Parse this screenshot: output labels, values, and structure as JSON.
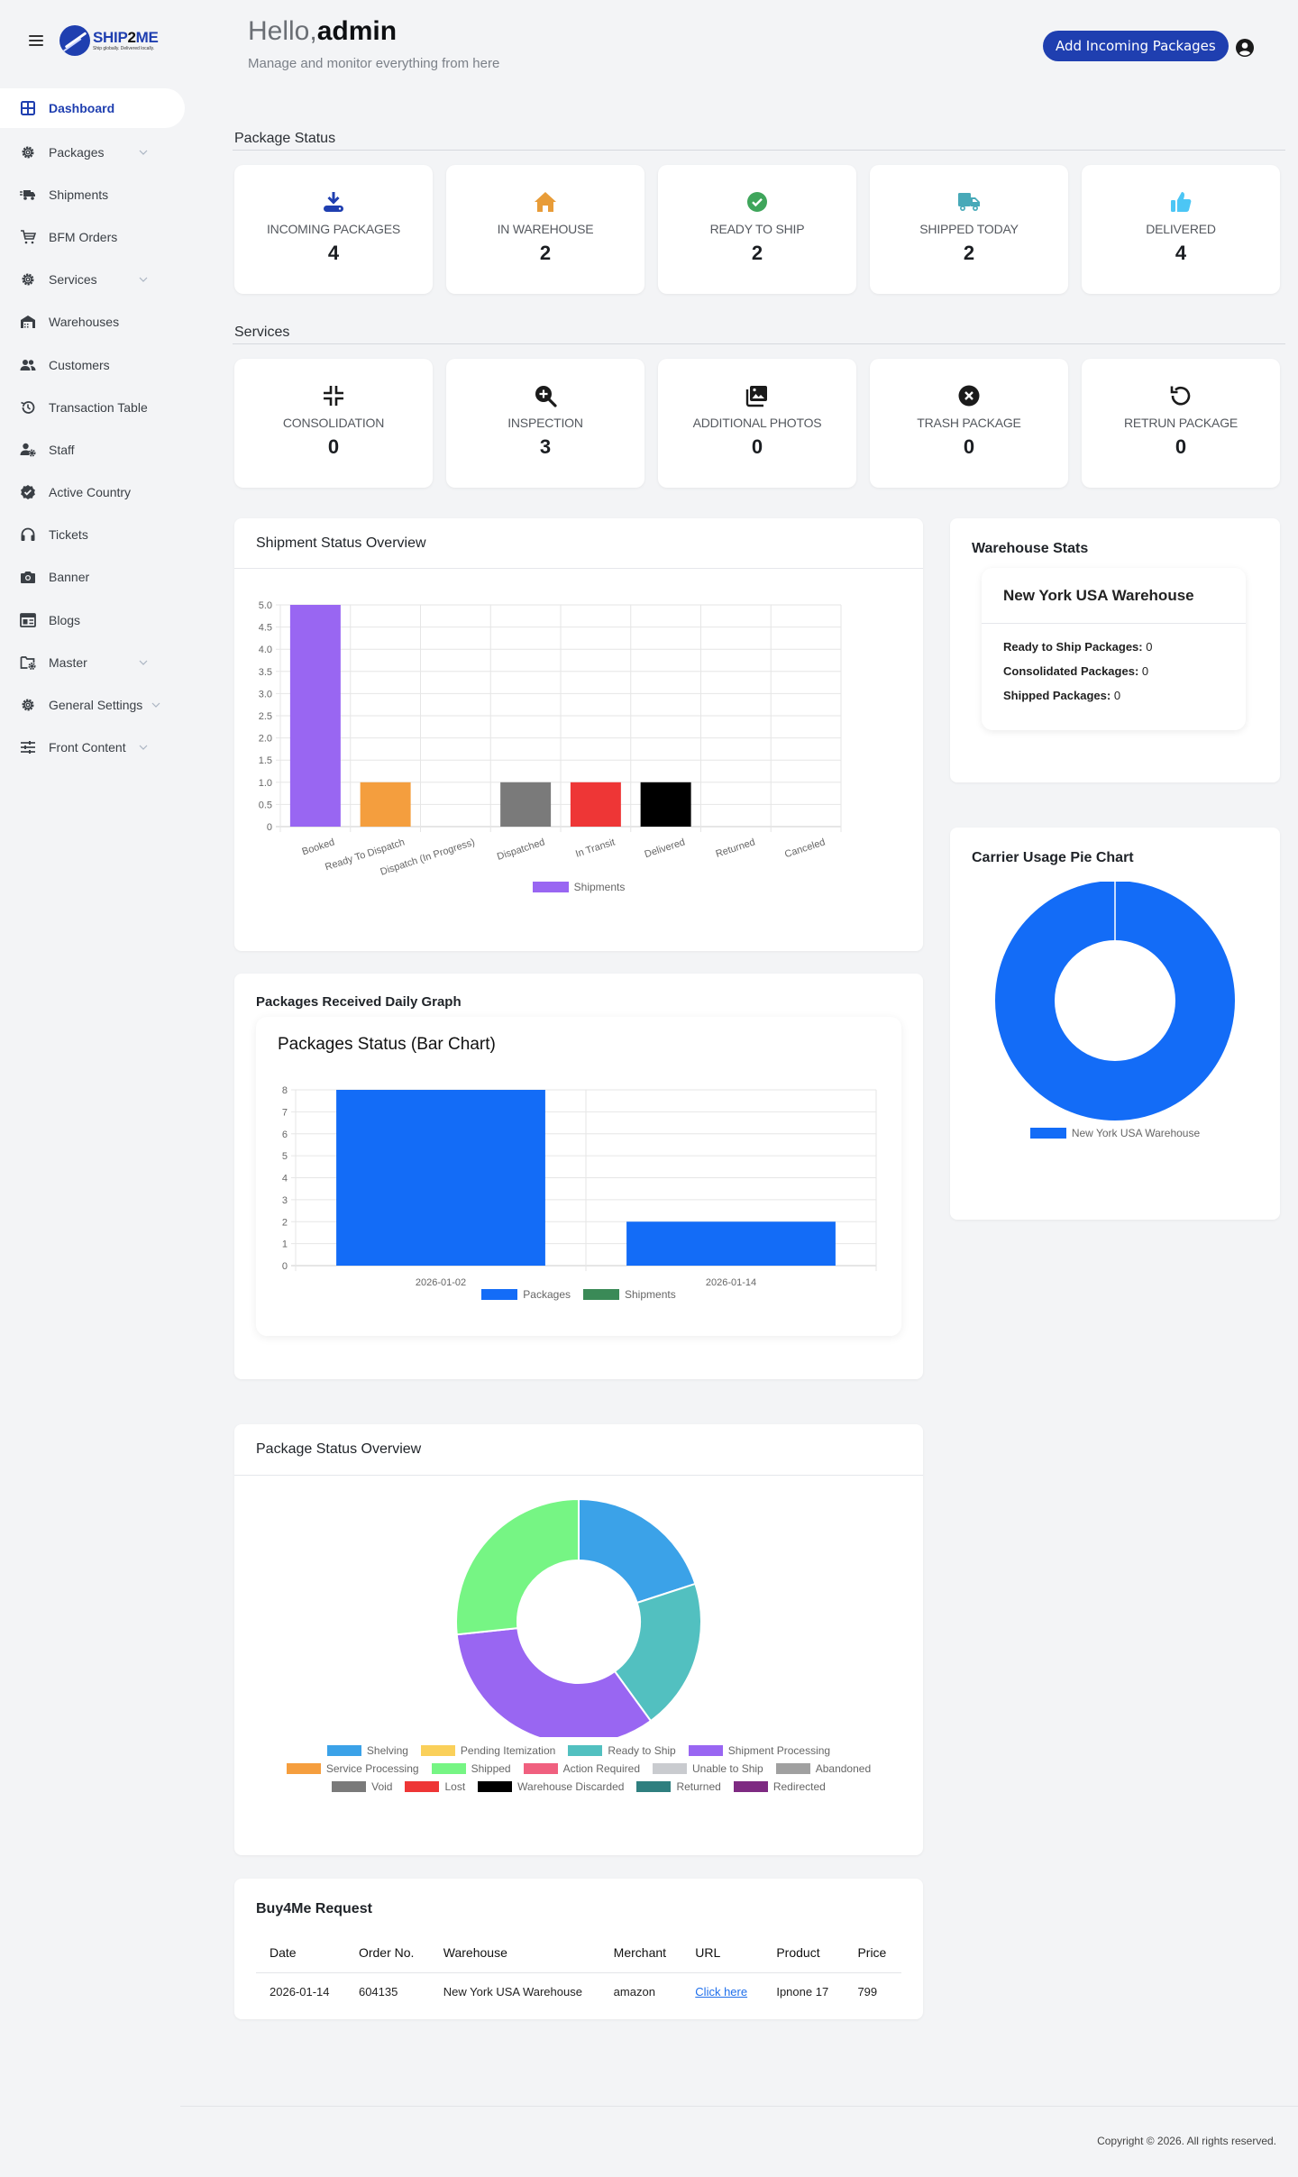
{
  "brand": {
    "name_a": "SHIP",
    "name_b": "2",
    "name_c": "ME",
    "tagline": "Ship globally. Delivered locally."
  },
  "sidebar": {
    "items": [
      {
        "label": "Dashboard",
        "icon": "grid-icon",
        "active": true,
        "has_chevron": false
      },
      {
        "label": "Packages",
        "icon": "gear-icon",
        "has_chevron": true
      },
      {
        "label": "Shipments",
        "icon": "truck-fast-icon",
        "has_chevron": false
      },
      {
        "label": "BFM Orders",
        "icon": "cart-icon",
        "has_chevron": false
      },
      {
        "label": "Services",
        "icon": "gear-icon",
        "has_chevron": true
      },
      {
        "label": "Warehouses",
        "icon": "warehouse-icon",
        "has_chevron": false
      },
      {
        "label": "Customers",
        "icon": "users-icon",
        "has_chevron": false
      },
      {
        "label": "Transaction Table",
        "icon": "history-icon",
        "has_chevron": false
      },
      {
        "label": "Staff",
        "icon": "user-gear-icon",
        "has_chevron": false
      },
      {
        "label": "Active Country",
        "icon": "badge-check-icon",
        "has_chevron": false
      },
      {
        "label": "Tickets",
        "icon": "headset-icon",
        "has_chevron": false
      },
      {
        "label": "Banner",
        "icon": "camera-icon",
        "has_chevron": false
      },
      {
        "label": "Blogs",
        "icon": "newspaper-icon",
        "has_chevron": false
      },
      {
        "label": "Master",
        "icon": "folder-gear-icon",
        "has_chevron": true
      },
      {
        "label": "General Settings",
        "icon": "gear-icon",
        "has_chevron": true
      },
      {
        "label": "Front Content",
        "icon": "sliders-icon",
        "has_chevron": true
      }
    ]
  },
  "header": {
    "greeting": "Hello,",
    "username": "admin",
    "subtitle": "Manage and monitor everything from here",
    "add_button": "Add Incoming Packages"
  },
  "package_status": {
    "title": "Package Status",
    "cards": [
      {
        "label": "INCOMING PACKAGES",
        "value": "4",
        "icon": "download-tray-icon",
        "color": "#1f3fb0"
      },
      {
        "label": "IN WAREHOUSE",
        "value": "2",
        "icon": "house-icon",
        "color": "#e89c38"
      },
      {
        "label": "READY TO SHIP",
        "value": "2",
        "icon": "check-circle-icon",
        "color": "#3fa55b"
      },
      {
        "label": "SHIPPED TODAY",
        "value": "2",
        "icon": "truck-icon",
        "color": "#47a9b8"
      },
      {
        "label": "DELIVERED",
        "value": "4",
        "icon": "thumbs-up-icon",
        "color": "#4cc6f5"
      }
    ]
  },
  "services": {
    "title": "Services",
    "cards": [
      {
        "label": "CONSOLIDATION",
        "value": "0",
        "icon": "compress-icon"
      },
      {
        "label": "INSPECTION",
        "value": "3",
        "icon": "zoom-in-icon"
      },
      {
        "label": "ADDITIONAL PHOTOS",
        "value": "0",
        "icon": "photos-icon"
      },
      {
        "label": "TRASH PACKAGE",
        "value": "0",
        "icon": "x-circle-icon"
      },
      {
        "label": "RETRUN PACKAGE",
        "value": "0",
        "icon": "undo-icon"
      }
    ]
  },
  "shipment_overview": {
    "title": "Shipment Status Overview"
  },
  "warehouse_stats": {
    "title": "Warehouse Stats",
    "warehouse_name": "New York USA Warehouse",
    "rows": [
      {
        "label": "Ready to Ship Packages:",
        "value": "0"
      },
      {
        "label": "Consolidated Packages:",
        "value": "0"
      },
      {
        "label": "Shipped Packages:",
        "value": "0"
      }
    ]
  },
  "carrier_usage": {
    "title": "Carrier Usage Pie Chart"
  },
  "packages_daily": {
    "title": "Packages Received Daily Graph",
    "chart_title": "Packages Status (Bar Chart)"
  },
  "package_overview": {
    "title": "Package Status Overview"
  },
  "buy4me": {
    "title": "Buy4Me Request",
    "columns": [
      "Date",
      "Order No.",
      "Warehouse",
      "Merchant",
      "URL",
      "Product",
      "Price"
    ],
    "rows": [
      [
        "2026-01-14",
        "604135",
        "New York USA Warehouse",
        "amazon",
        "Click here",
        "Ipnone 17",
        "799"
      ]
    ]
  },
  "footer": {
    "copyright": "Copyright © 2026. All rights reserved."
  },
  "chart_data": [
    {
      "type": "bar",
      "title": "Shipment Status Overview",
      "categories": [
        "Booked",
        "Ready To Dispatch",
        "Dispatch (In Progress)",
        "Dispatched",
        "In Transit",
        "Delivered",
        "Returned",
        "Canceled"
      ],
      "series": [
        {
          "name": "Shipments",
          "values": [
            5,
            1,
            0,
            1,
            1,
            1,
            0,
            0
          ]
        }
      ],
      "colors": [
        "#9966f2",
        "#f49e3e",
        "#4bc0c0",
        "#7a7a7a",
        "#ee3636",
        "#000000",
        "#2f7f7f",
        "#cccccc"
      ],
      "yticks": [
        "0",
        "0.5",
        "1.0",
        "1.5",
        "2.0",
        "2.5",
        "3.0",
        "3.5",
        "4.0",
        "4.5",
        "5.0"
      ],
      "ylim": [
        0,
        5
      ],
      "grid": true,
      "legend_position": "bottom"
    },
    {
      "type": "pie",
      "title": "Carrier Usage Pie Chart",
      "donut": true,
      "categories": [
        "New York USA Warehouse"
      ],
      "values": [
        1
      ],
      "colors": [
        "#136cf7"
      ],
      "legend_position": "bottom"
    },
    {
      "type": "bar",
      "title": "Packages Status (Bar Chart)",
      "categories": [
        "2026-01-02",
        "2026-01-14"
      ],
      "series": [
        {
          "name": "Packages",
          "values": [
            8,
            2
          ],
          "color": "#136cf7"
        },
        {
          "name": "Shipments",
          "values": [
            0,
            0
          ],
          "color": "#3a8a57"
        }
      ],
      "yticks": [
        "0",
        "1",
        "2",
        "3",
        "4",
        "5",
        "6",
        "7",
        "8"
      ],
      "ylim": [
        0,
        8
      ],
      "grid": true,
      "legend_position": "bottom"
    },
    {
      "type": "pie",
      "title": "Package Status Overview",
      "donut": true,
      "categories": [
        "Shelving",
        "Pending Itemization",
        "Ready to Ship",
        "Shipment Processing",
        "Service Processing",
        "Shipped",
        "Action Required",
        "Unable to Ship",
        "Abandoned",
        "Void",
        "Lost",
        "Warehouse Discarded",
        "Returned",
        "Redirected"
      ],
      "values": [
        3,
        0,
        3,
        5,
        0,
        4,
        0,
        0,
        0,
        0,
        0,
        0,
        0,
        0
      ],
      "colors": [
        "#3ba2e8",
        "#fad05a",
        "#52c0c0",
        "#9966f2",
        "#f59e3e",
        "#76f584",
        "#f0607f",
        "#c9cbcf",
        "#a0a0a0",
        "#7a7a7a",
        "#ee3636",
        "#000000",
        "#2f7f7f",
        "#7e2a82"
      ],
      "legend_position": "bottom"
    }
  ]
}
